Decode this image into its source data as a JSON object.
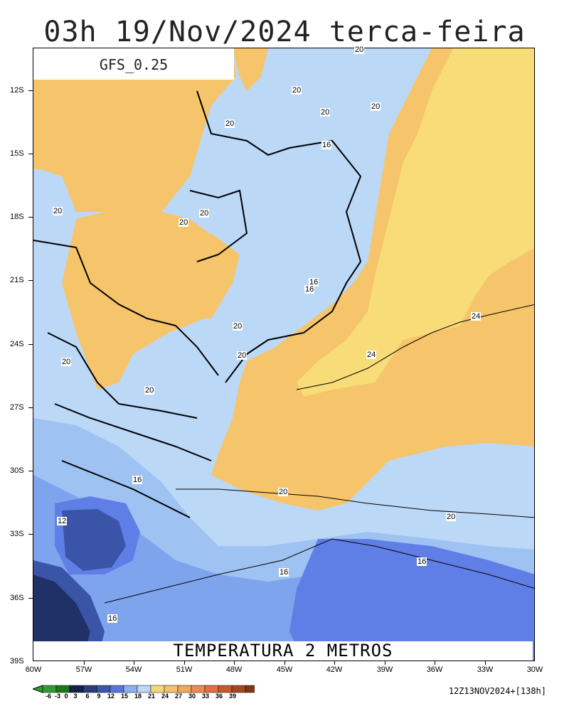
{
  "title": "03h 19/Nov/2024 terca-feira",
  "model": "GFS_0.25",
  "variable": "TEMPERATURA 2 METROS",
  "run_info": "12Z13NOV2024+[138h]",
  "lat_labels": [
    "12S",
    "15S",
    "18S",
    "21S",
    "24S",
    "27S",
    "30S",
    "33S",
    "36S",
    "39S"
  ],
  "lon_labels": [
    "60W",
    "57W",
    "54W",
    "51W",
    "48W",
    "45W",
    "42W",
    "39W",
    "36W",
    "33W",
    "30W"
  ],
  "contour_labels": [
    "20",
    "20",
    "20",
    "20",
    "16",
    "20",
    "20",
    "20",
    "20",
    "16",
    "16",
    "24",
    "24",
    "20",
    "20",
    "20",
    "20",
    "16",
    "20",
    "20",
    "12",
    "16",
    "16",
    "16"
  ],
  "colorbar": {
    "labels": [
      "-6",
      "-3",
      "0",
      "3",
      "6",
      "9",
      "12",
      "15",
      "18",
      "21",
      "24",
      "27",
      "30",
      "33",
      "36",
      "39"
    ],
    "colors": [
      "#2f9e2f",
      "#1a7a1a",
      "#16204a",
      "#2a3f7a",
      "#3c56ad",
      "#5b74e0",
      "#8ab0ee",
      "#bcd8f7",
      "#f7d878",
      "#f6c26a",
      "#f5a55c",
      "#ef8a4e",
      "#e46f3c",
      "#c85a2a",
      "#a44820",
      "#7d3816"
    ]
  },
  "palette": {
    "warm_24": "#f7dc78",
    "warm_21": "#f6c46a",
    "cool_18": "#bcd8f7",
    "cool_15": "#9ec2f2",
    "cool_12": "#7ea4ee",
    "cool_9": "#5f7ee6",
    "cool_6": "#3a55a8",
    "cool_3": "#1f3166"
  }
}
